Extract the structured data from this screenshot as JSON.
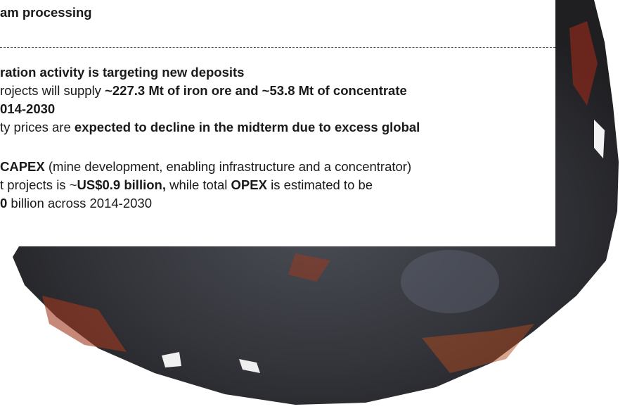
{
  "slide": {
    "heading": [
      {
        "text": "am processing",
        "bold": true
      }
    ],
    "lines": [
      {
        "top": false,
        "segments": [
          {
            "text": "ration activity is targeting new deposits",
            "bold": true
          }
        ]
      },
      {
        "top": false,
        "segments": [
          {
            "text": "rojects will supply ",
            "bold": false
          },
          {
            "text": "~227.3 Mt of iron ore and ~53.8 Mt of concentrate",
            "bold": true
          }
        ]
      },
      {
        "top": false,
        "segments": [
          {
            "text": "014-2030",
            "bold": true
          }
        ]
      },
      {
        "top": false,
        "segments": [
          {
            "text": "ty prices are ",
            "bold": false
          },
          {
            "text": "expected to decline in the midterm due to excess global",
            "bold": true
          }
        ]
      },
      {
        "top": true,
        "segments": [
          {
            "text": "CAPEX",
            "bold": true
          },
          {
            "text": " (mine development, enabling infrastructure and a concentrator)",
            "bold": false
          }
        ]
      },
      {
        "top": false,
        "segments": [
          {
            "text": "t projects is ~",
            "bold": false
          },
          {
            "text": "US$0.9 billion,",
            "bold": true
          },
          {
            "text": " while total ",
            "bold": false
          },
          {
            "text": "OPEX",
            "bold": true
          },
          {
            "text": " is estimated to be",
            "bold": false
          }
        ]
      },
      {
        "top": false,
        "segments": [
          {
            "text": "0",
            "bold": true
          },
          {
            "text": " billion across 2014-2030",
            "bold": false
          }
        ]
      }
    ]
  }
}
